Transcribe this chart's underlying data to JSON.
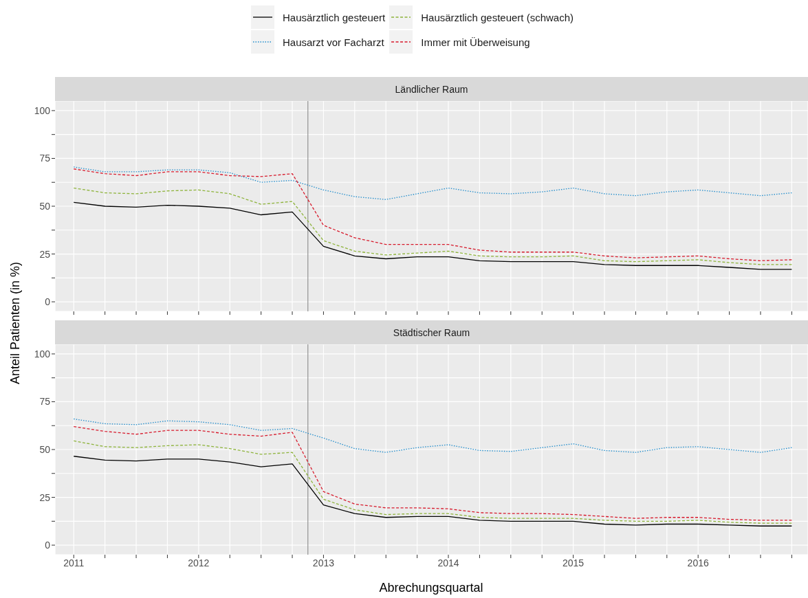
{
  "chart_data": [
    {
      "type": "line",
      "title": "Ländlicher Raum",
      "ylabel": "Anteil Patienten (in %)",
      "legend": "top",
      "grid": true,
      "tick_labels": "y",
      "x": [
        2011,
        2011.25,
        2011.5,
        2011.75,
        2012,
        2012.25,
        2012.5,
        2012.75,
        2013,
        2013.25,
        2013.5,
        2013.75,
        2014,
        2014.25,
        2014.5,
        2014.75,
        2015,
        2015.25,
        2015.5,
        2015.75,
        2016,
        2016.25,
        2016.5,
        2016.75
      ],
      "xlim": [
        2010.85,
        2016.88
      ],
      "xticks": [
        2011,
        {
          "value": 2011.25,
          "label": null
        },
        {
          "value": 2011.5,
          "label": null
        },
        {
          "value": 2011.75,
          "label": null
        },
        2012,
        {
          "value": 2012.25,
          "label": null
        },
        {
          "value": 2012.5,
          "label": null
        },
        {
          "value": 2012.75,
          "label": null
        },
        2013,
        {
          "value": 2013.25,
          "label": null
        },
        {
          "value": 2013.5,
          "label": null
        },
        {
          "value": 2013.75,
          "label": null
        },
        2014,
        {
          "value": 2014.25,
          "label": null
        },
        {
          "value": 2014.5,
          "label": null
        },
        {
          "value": 2014.75,
          "label": null
        },
        2015,
        {
          "value": 2015.25,
          "label": null
        },
        {
          "value": 2015.5,
          "label": null
        },
        {
          "value": 2015.75,
          "label": null
        },
        2016,
        {
          "value": 2016.25,
          "label": null
        },
        {
          "value": 2016.5,
          "label": null
        },
        {
          "value": 2016.75,
          "label": null
        }
      ],
      "ylim": [
        -5,
        105
      ],
      "yticks": [
        0,
        {
          "value": 12.5,
          "label": null
        },
        25,
        {
          "value": 37.5,
          "label": null
        },
        50,
        {
          "value": 62.5,
          "label": null
        },
        75,
        {
          "value": 87.5,
          "label": null
        },
        100
      ],
      "ref_lines": [
        {
          "axis": "x",
          "value": 2012.875,
          "color": "#999999"
        }
      ],
      "series": [
        {
          "name": "Hausärztlich gesteuert",
          "color": "#000000",
          "line_style": "solid",
          "values": [
            52,
            50,
            49.5,
            50.5,
            50,
            49,
            45.5,
            47,
            29,
            24,
            22.5,
            23.5,
            23.5,
            21.5,
            21,
            21,
            21,
            19.5,
            19,
            19,
            19,
            18,
            17,
            17
          ]
        },
        {
          "name": "Hausarzt vor Facharzt",
          "color": "#1f8ccc",
          "line_style": "dotted",
          "values": [
            70.5,
            68,
            68,
            69,
            69,
            67.5,
            62.5,
            63.5,
            58.5,
            55,
            53.5,
            56.5,
            59.5,
            57,
            56.5,
            57.5,
            59.5,
            56.5,
            55.5,
            57.5,
            58.5,
            57,
            55.5,
            57
          ]
        },
        {
          "name": "Hausärztlich gesteuert (schwach)",
          "color": "#8db33a",
          "line_style": "dashed",
          "values": [
            59.5,
            57,
            56.5,
            58,
            58.5,
            56.5,
            51,
            52.5,
            32,
            26.5,
            24.5,
            25.5,
            26.5,
            24,
            23.5,
            23.5,
            24,
            21.5,
            21,
            21.5,
            22,
            20.5,
            19.5,
            19.5
          ]
        },
        {
          "name": "Immer mit Überweisung",
          "color": "#d7192b",
          "line_style": "dashed",
          "values": [
            69.5,
            67,
            66,
            68,
            68,
            66,
            65.5,
            67,
            40,
            33.5,
            30,
            30,
            30,
            27,
            26,
            26,
            26,
            24,
            23,
            23.5,
            24,
            22.5,
            21.5,
            22
          ]
        }
      ]
    },
    {
      "type": "line",
      "title": "Städtischer Raum",
      "xlabel": "Abrechungsquartal",
      "grid": true,
      "x": [
        2011,
        2011.25,
        2011.5,
        2011.75,
        2012,
        2012.25,
        2012.5,
        2012.75,
        2013,
        2013.25,
        2013.5,
        2013.75,
        2014,
        2014.25,
        2014.5,
        2014.75,
        2015,
        2015.25,
        2015.5,
        2015.75,
        2016,
        2016.25,
        2016.5,
        2016.75
      ],
      "xlim": [
        2010.85,
        2016.88
      ],
      "xticks": [
        2011,
        {
          "value": 2011.25,
          "label": null
        },
        {
          "value": 2011.5,
          "label": null
        },
        {
          "value": 2011.75,
          "label": null
        },
        2012,
        {
          "value": 2012.25,
          "label": null
        },
        {
          "value": 2012.5,
          "label": null
        },
        {
          "value": 2012.75,
          "label": null
        },
        2013,
        {
          "value": 2013.25,
          "label": null
        },
        {
          "value": 2013.5,
          "label": null
        },
        {
          "value": 2013.75,
          "label": null
        },
        2014,
        {
          "value": 2014.25,
          "label": null
        },
        {
          "value": 2014.5,
          "label": null
        },
        {
          "value": 2014.75,
          "label": null
        },
        2015,
        {
          "value": 2015.25,
          "label": null
        },
        {
          "value": 2015.5,
          "label": null
        },
        {
          "value": 2015.75,
          "label": null
        },
        2016,
        {
          "value": 2016.25,
          "label": null
        },
        {
          "value": 2016.5,
          "label": null
        },
        {
          "value": 2016.75,
          "label": null
        }
      ],
      "ylim": [
        -5,
        105
      ],
      "yticks": [
        0,
        {
          "value": 12.5,
          "label": null
        },
        25,
        {
          "value": 37.5,
          "label": null
        },
        50,
        {
          "value": 62.5,
          "label": null
        },
        75,
        {
          "value": 87.5,
          "label": null
        },
        100
      ],
      "ref_lines": [
        {
          "axis": "x",
          "value": 2012.875,
          "color": "#999999"
        }
      ],
      "series": [
        {
          "color": "#000000",
          "line_style": "solid",
          "values": [
            46.5,
            44.5,
            44,
            45,
            45,
            43.5,
            41,
            42.5,
            21,
            16.5,
            14.5,
            15,
            15,
            13,
            12.5,
            12.5,
            12.5,
            11,
            10.5,
            11,
            11,
            10.5,
            10,
            10
          ]
        },
        {
          "color": "#1f8ccc",
          "line_style": "dotted",
          "values": [
            66,
            63.5,
            63,
            65,
            64.5,
            63,
            60,
            61,
            56,
            50.5,
            48.5,
            51,
            52.5,
            49.5,
            49,
            51,
            53,
            49.5,
            48.5,
            51,
            51.5,
            50,
            48.5,
            51
          ]
        },
        {
          "color": "#8db33a",
          "line_style": "dashed",
          "values": [
            54.5,
            51.5,
            51,
            52,
            52.5,
            50.5,
            47.5,
            48.5,
            24,
            18.5,
            16,
            16.5,
            16.5,
            14.5,
            14,
            14,
            14,
            13,
            12.5,
            12.5,
            13,
            12,
            11.5,
            11.5
          ]
        },
        {
          "color": "#d7192b",
          "line_style": "dashed",
          "values": [
            62,
            59.5,
            58,
            60,
            60,
            58,
            57,
            59,
            28,
            21.5,
            19.5,
            19.5,
            19,
            17,
            16.5,
            16.5,
            16,
            15,
            14,
            14.5,
            14.5,
            13.5,
            13,
            13
          ]
        }
      ]
    }
  ]
}
